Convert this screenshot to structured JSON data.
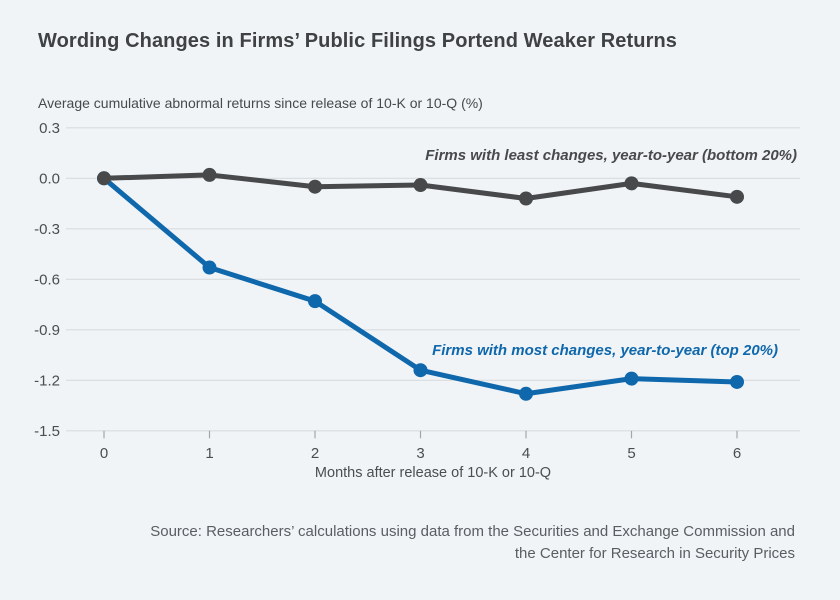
{
  "title": "Wording Changes in Firms’ Public Filings Portend Weaker Returns",
  "source": {
    "line1": "Source: Researchers’ calculations using data from the Securities and Exchange Commission and",
    "line2": "the Center for Research in Security Prices"
  },
  "colors": {
    "background": "#f0f4f7",
    "gridline": "#d8dcdf",
    "tick_mark": "#a3a7aa",
    "axis_text": "#4b4e51",
    "series_least_changes": "#48494b",
    "series_most_changes": "#0f67ac"
  },
  "chart_data": {
    "type": "line",
    "x": [
      0,
      1,
      2,
      3,
      4,
      5,
      6
    ],
    "xlabel": "Months after release of 10-K or 10-Q",
    "ylabel": "Average cumulative abnormal returns since release of 10-K or 10-Q (%)",
    "ylim": [
      -1.5,
      0.3
    ],
    "ytick_labels": [
      "0.3",
      "0.0",
      "-0.3",
      "-0.6",
      "-0.9",
      "-1.2",
      "-1.5"
    ],
    "ytick_values": [
      0.3,
      0.0,
      -0.3,
      -0.6,
      -0.9,
      -1.2,
      -1.5
    ],
    "grid": true,
    "legend_position": "inline-labels",
    "series": [
      {
        "name": "Firms with least changes, year-to-year (bottom 20%)",
        "color": "#48494b",
        "values": [
          0.0,
          0.02,
          -0.05,
          -0.04,
          -0.12,
          -0.03,
          -0.11
        ]
      },
      {
        "name": "Firms with most changes, year-to-year (top 20%)",
        "color": "#0f67ac",
        "values": [
          0.0,
          -0.53,
          -0.73,
          -1.14,
          -1.28,
          -1.19,
          -1.21
        ]
      }
    ]
  }
}
